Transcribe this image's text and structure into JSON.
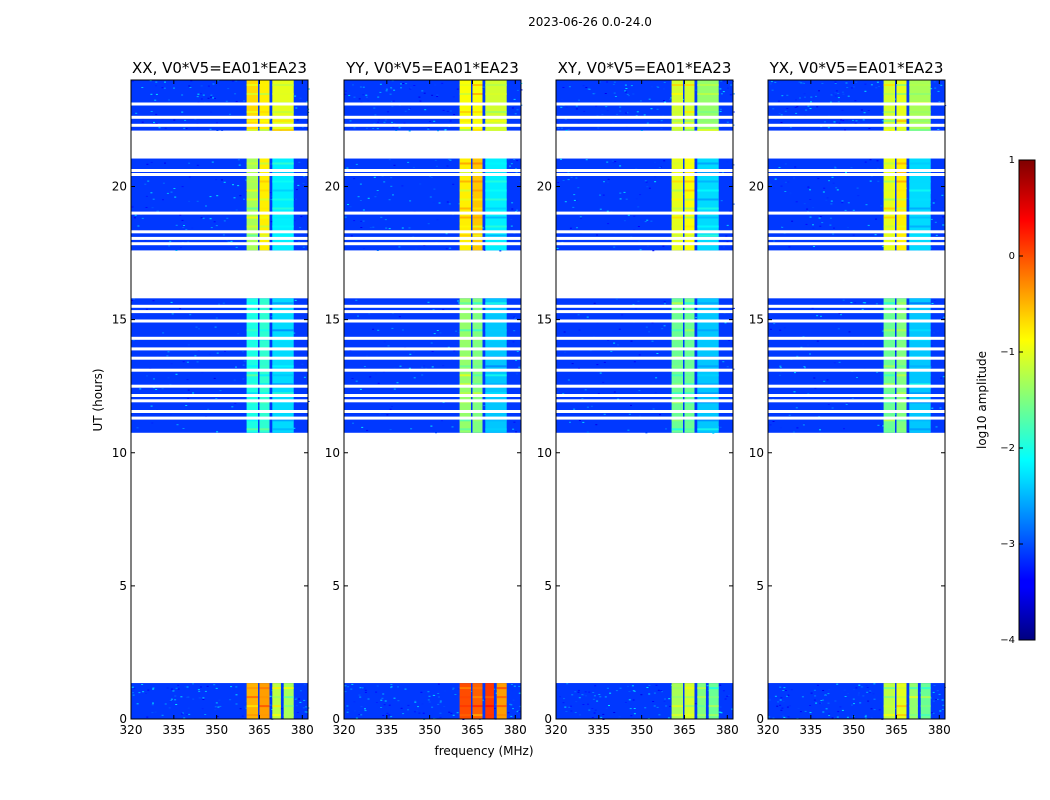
{
  "chart_data": {
    "type": "heatmap",
    "suptitle": "2023-06-26 0.0-24.0",
    "xlabel": "frequency (MHz)",
    "ylabel": "UT (hours)",
    "xlim": [
      320,
      382
    ],
    "ylim": [
      0,
      24
    ],
    "xticks": [
      "320",
      "335",
      "350",
      "365",
      "380"
    ],
    "xtick_values": [
      320,
      335,
      350,
      365,
      380
    ],
    "yticks": [
      "0",
      "5",
      "10",
      "15",
      "20"
    ],
    "ytick_values": [
      0,
      5,
      10,
      15,
      20
    ],
    "colorbar": {
      "label": "log10 amplitude",
      "range": [
        -4,
        1
      ],
      "ticks": [
        "−4",
        "−3",
        "−2",
        "−1",
        "0",
        "1"
      ],
      "tick_values": [
        -4,
        -3,
        -2,
        -1,
        0,
        1
      ],
      "colormap": "jet"
    },
    "background_value_log10_amplitude": -3.1,
    "data_ranges_ut_hours": [
      [
        0.0,
        1.35
      ],
      [
        10.75,
        15.8
      ],
      [
        17.6,
        21.05
      ],
      [
        22.1,
        24.0
      ]
    ],
    "gap_lines_ut_hours": [
      11.3,
      11.55,
      11.95,
      12.15,
      12.5,
      13.1,
      13.55,
      13.9,
      14.3,
      14.95,
      15.3,
      15.5,
      17.85,
      18.05,
      18.3,
      19.0,
      20.45,
      20.6,
      21.25,
      22.3,
      22.6,
      23.1
    ],
    "panels": [
      {
        "title": "XX, V0*V5=EA01*EA23",
        "bands": [
          {
            "f0": 360.5,
            "f1": 364.5,
            "t0": 0.0,
            "t1": 1.35,
            "v": -0.5
          },
          {
            "f0": 365,
            "f1": 368.5,
            "t0": 0.0,
            "t1": 1.35,
            "v": -0.4
          },
          {
            "f0": 369.5,
            "f1": 372.5,
            "t0": 0.0,
            "t1": 1.35,
            "v": -1.2
          },
          {
            "f0": 373.5,
            "f1": 377,
            "t0": 0.0,
            "t1": 1.35,
            "v": -1.3
          },
          {
            "f0": 360.5,
            "f1": 364.5,
            "t0": 10.75,
            "t1": 15.8,
            "v": -2.0
          },
          {
            "f0": 365,
            "f1": 368.5,
            "t0": 10.75,
            "t1": 15.8,
            "v": -1.9
          },
          {
            "f0": 369.5,
            "f1": 377,
            "t0": 10.75,
            "t1": 15.8,
            "v": -2.3
          },
          {
            "f0": 360.5,
            "f1": 364.5,
            "t0": 17.6,
            "t1": 21.05,
            "v": -1.3
          },
          {
            "f0": 365,
            "f1": 368.5,
            "t0": 17.6,
            "t1": 21.05,
            "v": -0.8
          },
          {
            "f0": 369.5,
            "f1": 377,
            "t0": 17.6,
            "t1": 21.05,
            "v": -2.2
          },
          {
            "f0": 360.5,
            "f1": 364.5,
            "t0": 22.1,
            "t1": 24.0,
            "v": -0.7
          },
          {
            "f0": 365,
            "f1": 368.5,
            "t0": 22.1,
            "t1": 24.0,
            "v": -0.8
          },
          {
            "f0": 369.5,
            "f1": 377,
            "t0": 22.1,
            "t1": 24.0,
            "v": -1.0
          }
        ]
      },
      {
        "title": "YY, V0*V5=EA01*EA23",
        "bands": [
          {
            "f0": 360.5,
            "f1": 364.5,
            "t0": 0.0,
            "t1": 1.35,
            "v": 0.0
          },
          {
            "f0": 365,
            "f1": 368.5,
            "t0": 0.0,
            "t1": 1.35,
            "v": -0.1
          },
          {
            "f0": 369.5,
            "f1": 372.5,
            "t0": 0.0,
            "t1": 1.35,
            "v": 0.1
          },
          {
            "f0": 373.5,
            "f1": 377,
            "t0": 0.0,
            "t1": 1.35,
            "v": -0.4
          },
          {
            "f0": 360.5,
            "f1": 364.5,
            "t0": 10.75,
            "t1": 15.8,
            "v": -1.4
          },
          {
            "f0": 365,
            "f1": 368.5,
            "t0": 10.75,
            "t1": 15.8,
            "v": -1.5
          },
          {
            "f0": 369.5,
            "f1": 377,
            "t0": 10.75,
            "t1": 15.8,
            "v": -2.4
          },
          {
            "f0": 360.5,
            "f1": 364.5,
            "t0": 17.6,
            "t1": 21.05,
            "v": -0.8
          },
          {
            "f0": 365,
            "f1": 368.5,
            "t0": 17.6,
            "t1": 21.05,
            "v": -0.6
          },
          {
            "f0": 369.5,
            "f1": 377,
            "t0": 17.6,
            "t1": 21.05,
            "v": -2.2
          },
          {
            "f0": 360.5,
            "f1": 364.5,
            "t0": 22.1,
            "t1": 24.0,
            "v": -0.9
          },
          {
            "f0": 365,
            "f1": 368.5,
            "t0": 22.1,
            "t1": 24.0,
            "v": -0.9
          },
          {
            "f0": 369.5,
            "f1": 377,
            "t0": 22.1,
            "t1": 24.0,
            "v": -1.1
          }
        ]
      },
      {
        "title": "XY, V0*V5=EA01*EA23",
        "bands": [
          {
            "f0": 360.5,
            "f1": 364.5,
            "t0": 0.0,
            "t1": 1.35,
            "v": -1.3
          },
          {
            "f0": 365,
            "f1": 368.5,
            "t0": 0.0,
            "t1": 1.35,
            "v": -1.1
          },
          {
            "f0": 369.5,
            "f1": 372.5,
            "t0": 0.0,
            "t1": 1.35,
            "v": -1.5
          },
          {
            "f0": 373.5,
            "f1": 377,
            "t0": 0.0,
            "t1": 1.35,
            "v": -1.6
          },
          {
            "f0": 360.5,
            "f1": 364.5,
            "t0": 10.75,
            "t1": 15.8,
            "v": -1.6
          },
          {
            "f0": 365,
            "f1": 368.5,
            "t0": 10.75,
            "t1": 15.8,
            "v": -1.6
          },
          {
            "f0": 369.5,
            "f1": 377,
            "t0": 10.75,
            "t1": 15.8,
            "v": -2.4
          },
          {
            "f0": 360.5,
            "f1": 364.5,
            "t0": 17.6,
            "t1": 21.05,
            "v": -1.0
          },
          {
            "f0": 365,
            "f1": 368.5,
            "t0": 17.6,
            "t1": 21.05,
            "v": -0.9
          },
          {
            "f0": 369.5,
            "f1": 377,
            "t0": 17.6,
            "t1": 21.05,
            "v": -2.3
          },
          {
            "f0": 360.5,
            "f1": 364.5,
            "t0": 22.1,
            "t1": 24.0,
            "v": -1.1
          },
          {
            "f0": 365,
            "f1": 368.5,
            "t0": 22.1,
            "t1": 24.0,
            "v": -1.1
          },
          {
            "f0": 369.5,
            "f1": 377,
            "t0": 22.1,
            "t1": 24.0,
            "v": -1.4
          }
        ]
      },
      {
        "title": "YX, V0*V5=EA01*EA23",
        "bands": [
          {
            "f0": 360.5,
            "f1": 364.5,
            "t0": 0.0,
            "t1": 1.35,
            "v": -1.2
          },
          {
            "f0": 365,
            "f1": 368.5,
            "t0": 0.0,
            "t1": 1.35,
            "v": -1.0
          },
          {
            "f0": 369.5,
            "f1": 372.5,
            "t0": 0.0,
            "t1": 1.35,
            "v": -1.4
          },
          {
            "f0": 373.5,
            "f1": 377,
            "t0": 0.0,
            "t1": 1.35,
            "v": -1.6
          },
          {
            "f0": 360.5,
            "f1": 364.5,
            "t0": 10.75,
            "t1": 15.8,
            "v": -1.6
          },
          {
            "f0": 365,
            "f1": 368.5,
            "t0": 10.75,
            "t1": 15.8,
            "v": -1.5
          },
          {
            "f0": 369.5,
            "f1": 377,
            "t0": 10.75,
            "t1": 15.8,
            "v": -2.4
          },
          {
            "f0": 360.5,
            "f1": 364.5,
            "t0": 17.6,
            "t1": 21.05,
            "v": -1.0
          },
          {
            "f0": 365,
            "f1": 368.5,
            "t0": 17.6,
            "t1": 21.05,
            "v": -0.8
          },
          {
            "f0": 369.5,
            "f1": 377,
            "t0": 17.6,
            "t1": 21.05,
            "v": -2.3
          },
          {
            "f0": 360.5,
            "f1": 364.5,
            "t0": 22.1,
            "t1": 24.0,
            "v": -1.1
          },
          {
            "f0": 365,
            "f1": 368.5,
            "t0": 22.1,
            "t1": 24.0,
            "v": -1.0
          },
          {
            "f0": 369.5,
            "f1": 377,
            "t0": 22.1,
            "t1": 24.0,
            "v": -1.3
          }
        ]
      }
    ]
  }
}
